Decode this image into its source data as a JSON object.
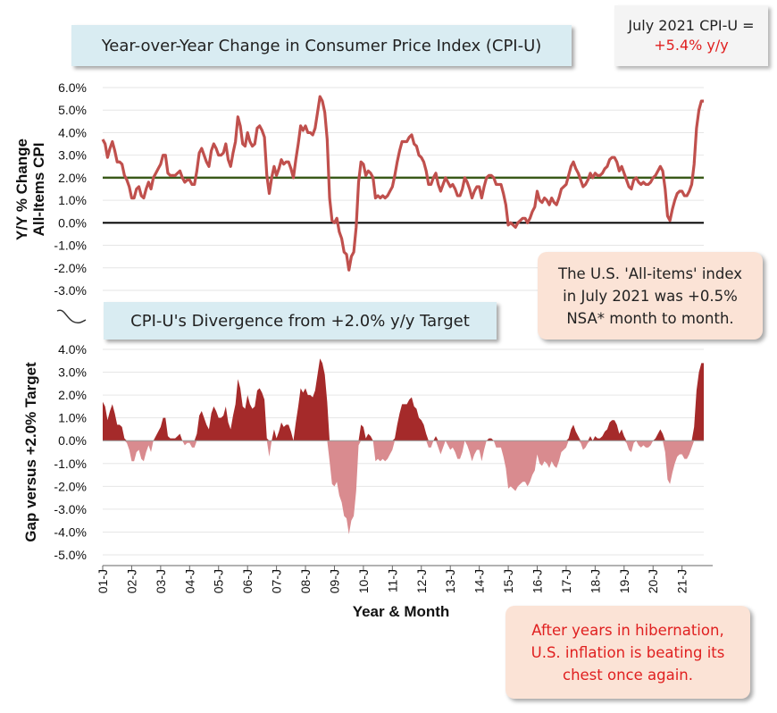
{
  "chart_data": [
    {
      "type": "line",
      "title": "Year-over-Year Change in Consumer Price Index (CPI-U)",
      "ylabel_line1": "Y/Y % Change",
      "ylabel_line2": "All-Items CPI",
      "ylim": [
        -3.0,
        6.0
      ],
      "yticks": [
        "6.0%",
        "5.0%",
        "4.0%",
        "3.0%",
        "2.0%",
        "1.0%",
        "0.0%",
        "-1.0%",
        "-2.0%",
        "-3.0%"
      ],
      "reference_lines": [
        {
          "value": 2.0,
          "color": "#3a5a1a"
        },
        {
          "value": 0.0,
          "color": "#000000"
        }
      ],
      "series": [
        {
          "color": "#c0504d",
          "x_start": "2001-01",
          "x_end": "2021-07",
          "values": [
            3.7,
            3.5,
            2.9,
            3.3,
            3.6,
            3.2,
            2.7,
            2.7,
            2.6,
            2.1,
            1.9,
            1.6,
            1.1,
            1.1,
            1.5,
            1.6,
            1.2,
            1.1,
            1.5,
            1.8,
            1.5,
            2.0,
            2.2,
            2.4,
            2.6,
            3.0,
            3.0,
            2.2,
            2.1,
            2.1,
            2.1,
            2.2,
            2.3,
            2.0,
            1.8,
            1.9,
            1.9,
            1.7,
            1.7,
            2.3,
            3.1,
            3.3,
            3.0,
            2.7,
            2.5,
            3.2,
            3.5,
            3.3,
            3.0,
            3.0,
            3.1,
            3.5,
            2.8,
            2.5,
            3.1,
            3.6,
            4.7,
            4.3,
            3.5,
            3.4,
            4.0,
            3.6,
            3.4,
            3.5,
            4.2,
            4.3,
            4.1,
            3.8,
            2.1,
            1.3,
            2.0,
            2.5,
            2.1,
            2.4,
            2.8,
            2.6,
            2.7,
            2.7,
            2.4,
            2.0,
            2.8,
            3.5,
            4.3,
            4.1,
            4.3,
            4.0,
            4.0,
            3.9,
            4.2,
            4.9,
            5.6,
            5.4,
            4.9,
            3.7,
            1.1,
            0.1,
            0.0,
            0.2,
            -0.4,
            -0.7,
            -1.3,
            -1.4,
            -2.1,
            -1.5,
            -1.3,
            -0.2,
            1.8,
            2.7,
            2.6,
            2.1,
            2.3,
            2.2,
            2.0,
            1.1,
            1.2,
            1.1,
            1.2,
            1.1,
            1.2,
            1.4,
            1.6,
            2.1,
            2.7,
            3.2,
            3.6,
            3.6,
            3.6,
            3.8,
            3.9,
            3.5,
            3.4,
            3.0,
            2.9,
            2.7,
            2.3,
            1.7,
            1.7,
            2.0,
            2.2,
            1.7,
            1.4,
            1.7,
            2.0,
            1.8,
            1.6,
            1.7,
            1.5,
            1.2,
            1.2,
            1.5,
            2.0,
            1.8,
            1.5,
            1.1,
            1.4,
            1.6,
            1.6,
            1.1,
            1.6,
            2.0,
            2.1,
            2.1,
            2.0,
            1.7,
            1.7,
            1.7,
            1.3,
            0.8,
            -0.1,
            0.0,
            -0.1,
            -0.2,
            0.0,
            0.1,
            0.2,
            0.2,
            0.0,
            0.2,
            0.5,
            0.7,
            1.4,
            1.0,
            0.9,
            1.1,
            1.0,
            0.8,
            1.1,
            0.9,
            0.8,
            1.1,
            1.5,
            1.6,
            1.7,
            2.1,
            2.5,
            2.7,
            2.4,
            2.2,
            1.9,
            1.6,
            1.7,
            1.9,
            2.2,
            2.0,
            2.2,
            2.1,
            2.1,
            2.2,
            2.4,
            2.5,
            2.8,
            2.9,
            2.9,
            2.7,
            2.3,
            2.5,
            2.2,
            1.9,
            1.6,
            1.5,
            1.9,
            2.0,
            1.8,
            1.7,
            1.8,
            1.7,
            1.7,
            1.8,
            2.0,
            2.1,
            2.3,
            2.5,
            2.3,
            1.5,
            0.3,
            0.1,
            0.6,
            1.0,
            1.3,
            1.4,
            1.4,
            1.2,
            1.2,
            1.4,
            1.7,
            2.6,
            4.2,
            5.0,
            5.4,
            5.4
          ]
        }
      ]
    },
    {
      "type": "area",
      "title": "CPI-U's Divergence from +2.0% y/y Target",
      "ylabel": "Gap versus +2.0% Target",
      "ylim": [
        -5.0,
        4.0
      ],
      "yticks": [
        "4.0%",
        "3.0%",
        "2.0%",
        "1.0%",
        "0.0%",
        "-1.0%",
        "-2.0%",
        "-3.0%",
        "-4.0%",
        "-5.0%"
      ],
      "positive_color": "#a52a2a",
      "negative_color": "#d98b8f",
      "target": 2.0,
      "derived_from": "series above minus 2.0"
    }
  ],
  "x_axis": {
    "label": "Year & Month",
    "ticks": [
      "01-J",
      "02-J",
      "03-J",
      "04-J",
      "05-J",
      "06-J",
      "07-J",
      "08-J",
      "09-J",
      "10-J",
      "11-J",
      "12-J",
      "13-J",
      "14-J",
      "15-J",
      "16-J",
      "17-J",
      "18-J",
      "19-J",
      "20-J",
      "21-J"
    ]
  },
  "annotations": {
    "cpi_box_line1": "July 2021 CPI-U =",
    "cpi_box_line2": "+5.4% y/y",
    "note_mom": "The U.S. 'All-items' index in July 2021 was +0.5% NSA* month to month.",
    "note_hibernation": "After years in hibernation, U.S. inflation is beating its chest once again."
  },
  "colors": {
    "line": "#c0504d",
    "target_line": "#3a5a1a",
    "title_bg": "#d9ecf2",
    "note_bg": "#fbe3d6",
    "highlight_text": "#e02020"
  }
}
